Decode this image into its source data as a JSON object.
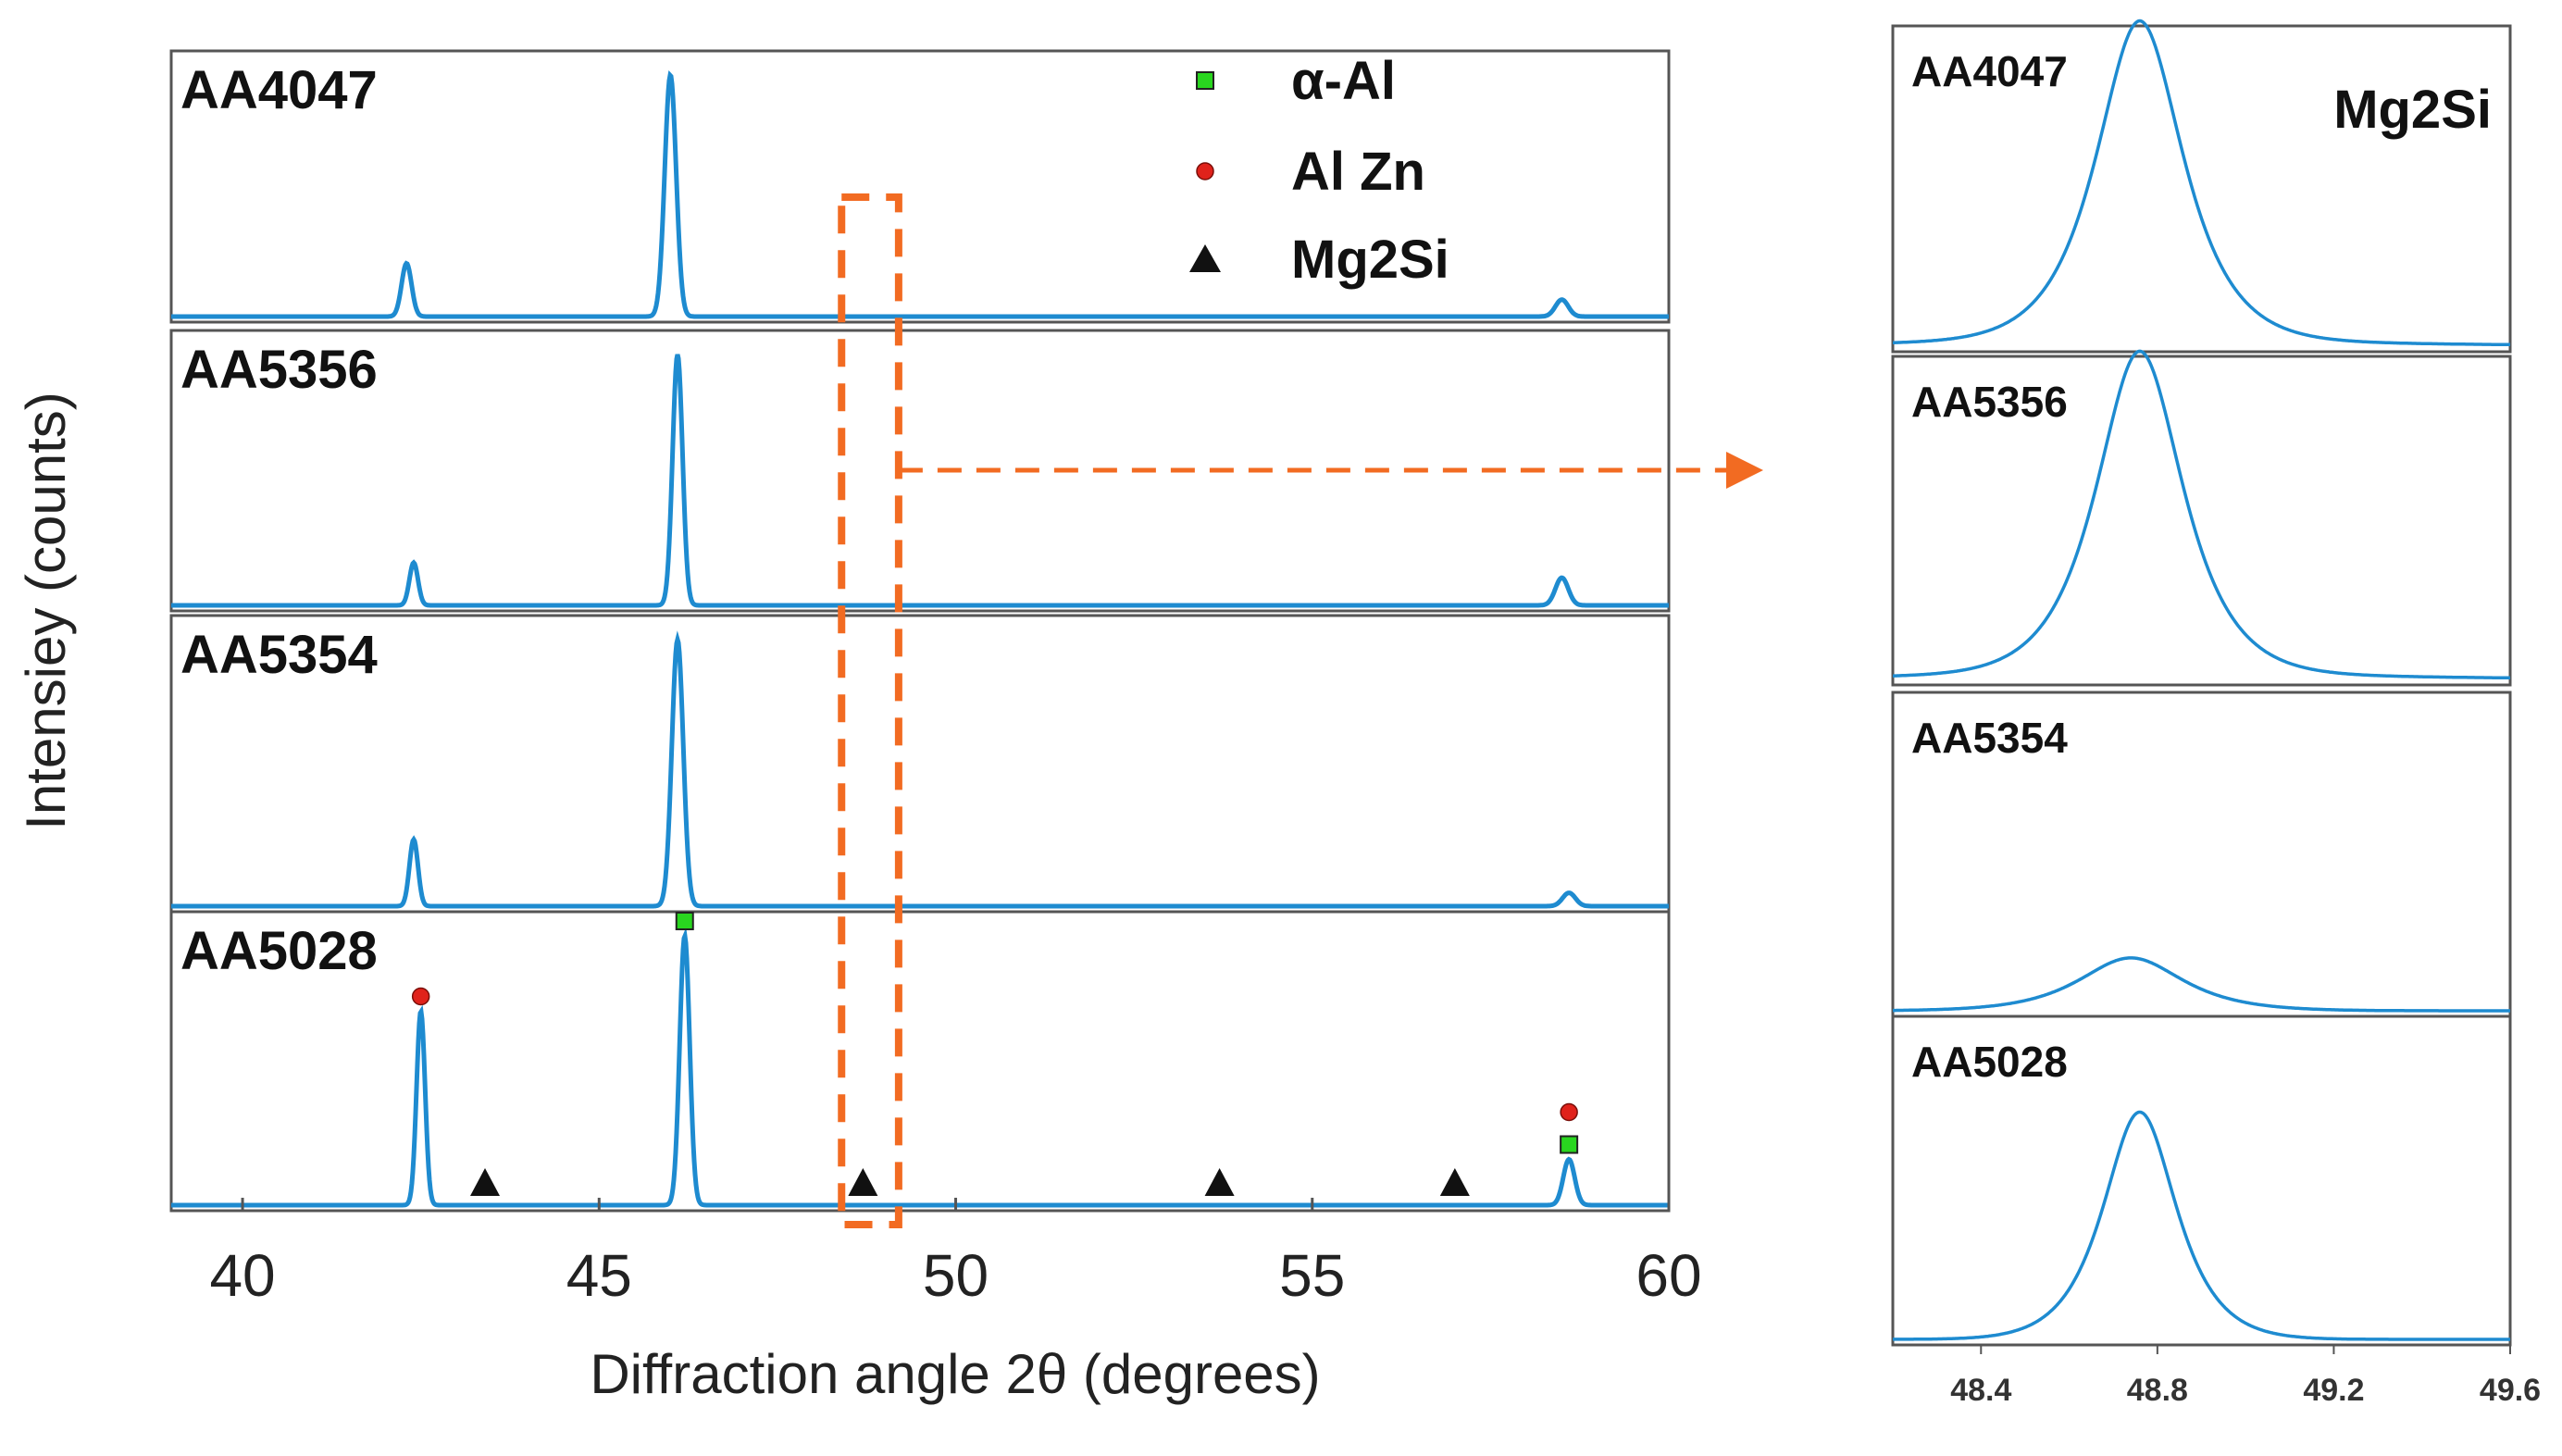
{
  "colors": {
    "trace": "#1e8bd0",
    "frame": "#555555",
    "highlight": "#f26b22",
    "alpha_al": "#29d61f",
    "al_zn": "#e0221b",
    "mg2si": "#111111"
  },
  "chart_data": [
    {
      "type": "line",
      "title": "",
      "xlabel": "Diffraction angle 2θ (degrees)",
      "ylabel": "Intensiey (counts)",
      "xlim": [
        39,
        60
      ],
      "xticks": [
        40,
        45,
        50,
        55,
        60
      ],
      "tick_labels": [
        "40",
        "45",
        "50",
        "55",
        "60"
      ],
      "series": [
        {
          "name": "AA4047",
          "peaks": [
            {
              "pos": 42.3,
              "height": 0.22,
              "width": 0.07
            },
            {
              "pos": 46.0,
              "height": 1.0,
              "width": 0.08
            },
            {
              "pos": 58.5,
              "height": 0.07,
              "width": 0.09
            }
          ]
        },
        {
          "name": "AA5356",
          "peaks": [
            {
              "pos": 42.4,
              "height": 0.17,
              "width": 0.06
            },
            {
              "pos": 46.1,
              "height": 1.0,
              "width": 0.07
            },
            {
              "pos": 58.5,
              "height": 0.11,
              "width": 0.09
            }
          ]
        },
        {
          "name": "AA5354",
          "peaks": [
            {
              "pos": 42.4,
              "height": 0.25,
              "width": 0.06
            },
            {
              "pos": 46.1,
              "height": 1.0,
              "width": 0.08
            },
            {
              "pos": 58.6,
              "height": 0.05,
              "width": 0.09
            }
          ]
        },
        {
          "name": "AA5028",
          "peaks": [
            {
              "pos": 42.5,
              "height": 0.72,
              "width": 0.06
            },
            {
              "pos": 46.2,
              "height": 1.0,
              "width": 0.07
            },
            {
              "pos": 58.6,
              "height": 0.17,
              "width": 0.08
            }
          ]
        }
      ],
      "markers": [
        {
          "phase": "α-Al",
          "shape": "square",
          "x": 46.2
        },
        {
          "phase": "α-Al",
          "shape": "square",
          "x": 58.6
        },
        {
          "phase": "Al Zn",
          "shape": "circle",
          "x": 42.5
        },
        {
          "phase": "Al Zn",
          "shape": "circle",
          "x": 58.6
        },
        {
          "phase": "Mg2Si",
          "shape": "triangle",
          "x": 43.4
        },
        {
          "phase": "Mg2Si",
          "shape": "triangle",
          "x": 48.7
        },
        {
          "phase": "Mg2Si",
          "shape": "triangle",
          "x": 53.7
        },
        {
          "phase": "Mg2Si",
          "shape": "triangle",
          "x": 57.0
        }
      ],
      "legend": {
        "placement": "top-right",
        "entries": [
          {
            "label": "α-Al",
            "shape": "square"
          },
          {
            "label": "Al Zn",
            "shape": "circle"
          },
          {
            "label": "Mg2Si",
            "shape": "triangle"
          }
        ]
      },
      "highlight_region": [
        48.4,
        49.2
      ]
    },
    {
      "type": "line",
      "title": "Mg2Si",
      "xlabel": "",
      "ylabel": "",
      "xlim": [
        48.2,
        49.6
      ],
      "xticks": [
        48.4,
        48.8,
        49.2,
        49.6
      ],
      "tick_labels": [
        "48.4",
        "48.8",
        "49.2",
        "49.6"
      ],
      "series": [
        {
          "name": "AA4047",
          "peak_pos": 48.76,
          "height": 1.0,
          "width": 0.1,
          "baseline": 0.04
        },
        {
          "name": "AA5356",
          "peak_pos": 48.76,
          "height": 1.0,
          "width": 0.1,
          "baseline": 0.04
        },
        {
          "name": "AA5354",
          "peak_pos": 48.74,
          "height": 0.17,
          "width": 0.12,
          "baseline": 0.0
        },
        {
          "name": "AA5028",
          "peak_pos": 48.76,
          "height": 0.72,
          "width": 0.085,
          "baseline": 0.0
        }
      ]
    }
  ]
}
